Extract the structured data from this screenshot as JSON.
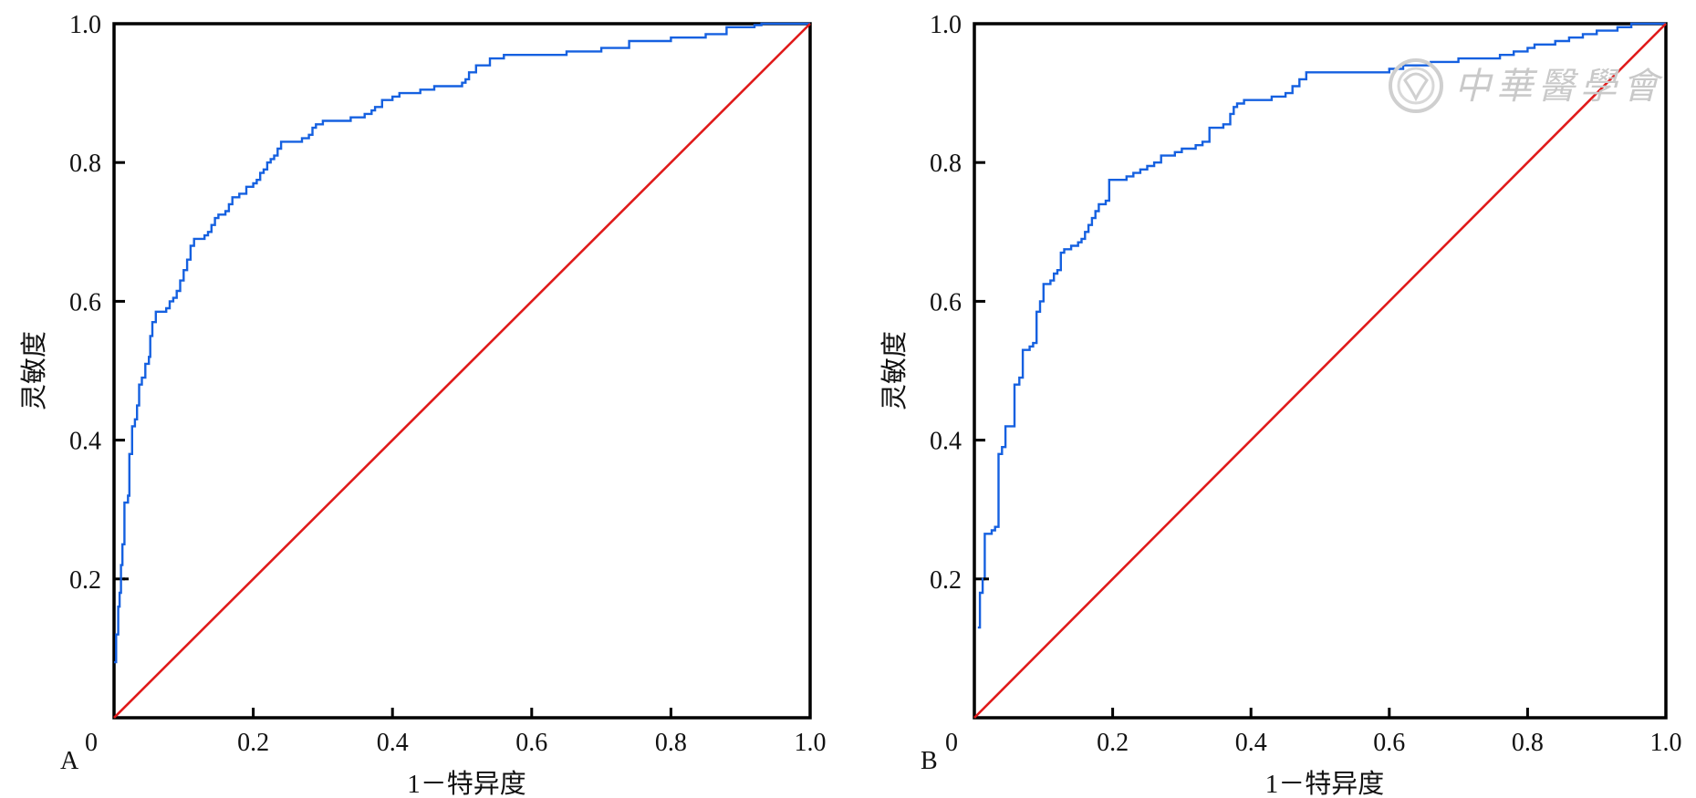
{
  "watermark": {
    "text": "中華醫學會"
  },
  "chart_data": [
    {
      "type": "line",
      "panel_label": "A",
      "xlabel": "1－特异度",
      "ylabel": "灵敏度",
      "xlim": [
        0,
        1.0
      ],
      "ylim": [
        0,
        1.0
      ],
      "xticks": [
        "0",
        "0.2",
        "0.4",
        "0.6",
        "0.8",
        "1.0"
      ],
      "yticks": [
        "0.2",
        "0.4",
        "0.6",
        "0.8",
        "1.0"
      ],
      "grid": false,
      "series": [
        {
          "color": "#1560e0",
          "step": true,
          "points": [
            [
              0,
              0.08
            ],
            [
              0.003,
              0.12
            ],
            [
              0.006,
              0.16
            ],
            [
              0.008,
              0.18
            ],
            [
              0.01,
              0.22
            ],
            [
              0.012,
              0.25
            ],
            [
              0.015,
              0.31
            ],
            [
              0.02,
              0.32
            ],
            [
              0.022,
              0.38
            ],
            [
              0.026,
              0.42
            ],
            [
              0.03,
              0.43
            ],
            [
              0.033,
              0.45
            ],
            [
              0.036,
              0.48
            ],
            [
              0.04,
              0.49
            ],
            [
              0.045,
              0.51
            ],
            [
              0.05,
              0.52
            ],
            [
              0.052,
              0.55
            ],
            [
              0.055,
              0.57
            ],
            [
              0.06,
              0.585
            ],
            [
              0.065,
              0.585
            ],
            [
              0.075,
              0.59
            ],
            [
              0.08,
              0.6
            ],
            [
              0.085,
              0.605
            ],
            [
              0.09,
              0.615
            ],
            [
              0.095,
              0.63
            ],
            [
              0.1,
              0.645
            ],
            [
              0.105,
              0.66
            ],
            [
              0.11,
              0.68
            ],
            [
              0.115,
              0.69
            ],
            [
              0.13,
              0.695
            ],
            [
              0.135,
              0.7
            ],
            [
              0.14,
              0.71
            ],
            [
              0.145,
              0.72
            ],
            [
              0.15,
              0.725
            ],
            [
              0.16,
              0.73
            ],
            [
              0.165,
              0.74
            ],
            [
              0.17,
              0.75
            ],
            [
              0.18,
              0.755
            ],
            [
              0.19,
              0.765
            ],
            [
              0.2,
              0.77
            ],
            [
              0.205,
              0.775
            ],
            [
              0.21,
              0.785
            ],
            [
              0.215,
              0.79
            ],
            [
              0.22,
              0.8
            ],
            [
              0.225,
              0.805
            ],
            [
              0.23,
              0.81
            ],
            [
              0.235,
              0.82
            ],
            [
              0.24,
              0.83
            ],
            [
              0.26,
              0.83
            ],
            [
              0.27,
              0.835
            ],
            [
              0.28,
              0.84
            ],
            [
              0.285,
              0.85
            ],
            [
              0.29,
              0.855
            ],
            [
              0.3,
              0.86
            ],
            [
              0.34,
              0.865
            ],
            [
              0.36,
              0.87
            ],
            [
              0.37,
              0.875
            ],
            [
              0.375,
              0.88
            ],
            [
              0.385,
              0.89
            ],
            [
              0.4,
              0.895
            ],
            [
              0.41,
              0.9
            ],
            [
              0.44,
              0.905
            ],
            [
              0.46,
              0.91
            ],
            [
              0.5,
              0.915
            ],
            [
              0.505,
              0.92
            ],
            [
              0.51,
              0.93
            ],
            [
              0.52,
              0.94
            ],
            [
              0.54,
              0.95
            ],
            [
              0.56,
              0.955
            ],
            [
              0.6,
              0.955
            ],
            [
              0.65,
              0.96
            ],
            [
              0.7,
              0.965
            ],
            [
              0.74,
              0.975
            ],
            [
              0.8,
              0.98
            ],
            [
              0.85,
              0.985
            ],
            [
              0.88,
              0.995
            ],
            [
              0.92,
              0.998
            ],
            [
              0.93,
              1.0
            ],
            [
              1.0,
              1.0
            ]
          ]
        },
        {
          "color": "#e01a1a",
          "step": false,
          "points": [
            [
              0,
              0
            ],
            [
              1,
              1
            ]
          ]
        }
      ]
    },
    {
      "type": "line",
      "panel_label": "B",
      "xlabel": "1－特异度",
      "ylabel": "灵敏度",
      "xlim": [
        0,
        1.0
      ],
      "ylim": [
        0,
        1.0
      ],
      "xticks": [
        "0",
        "0.2",
        "0.4",
        "0.6",
        "0.8",
        "1.0"
      ],
      "yticks": [
        "0.2",
        "0.4",
        "0.6",
        "0.8",
        "1.0"
      ],
      "grid": false,
      "series": [
        {
          "color": "#1560e0",
          "step": true,
          "points": [
            [
              0.005,
              0.13
            ],
            [
              0.008,
              0.18
            ],
            [
              0.012,
              0.2
            ],
            [
              0.015,
              0.265
            ],
            [
              0.025,
              0.27
            ],
            [
              0.03,
              0.275
            ],
            [
              0.035,
              0.38
            ],
            [
              0.04,
              0.39
            ],
            [
              0.045,
              0.42
            ],
            [
              0.055,
              0.42
            ],
            [
              0.058,
              0.48
            ],
            [
              0.065,
              0.49
            ],
            [
              0.07,
              0.53
            ],
            [
              0.08,
              0.535
            ],
            [
              0.085,
              0.54
            ],
            [
              0.09,
              0.585
            ],
            [
              0.095,
              0.6
            ],
            [
              0.1,
              0.625
            ],
            [
              0.11,
              0.63
            ],
            [
              0.115,
              0.64
            ],
            [
              0.12,
              0.645
            ],
            [
              0.125,
              0.67
            ],
            [
              0.13,
              0.675
            ],
            [
              0.14,
              0.68
            ],
            [
              0.15,
              0.685
            ],
            [
              0.155,
              0.69
            ],
            [
              0.16,
              0.7
            ],
            [
              0.165,
              0.71
            ],
            [
              0.17,
              0.72
            ],
            [
              0.175,
              0.73
            ],
            [
              0.18,
              0.74
            ],
            [
              0.19,
              0.745
            ],
            [
              0.195,
              0.775
            ],
            [
              0.22,
              0.78
            ],
            [
              0.23,
              0.785
            ],
            [
              0.24,
              0.79
            ],
            [
              0.25,
              0.795
            ],
            [
              0.26,
              0.8
            ],
            [
              0.27,
              0.81
            ],
            [
              0.29,
              0.815
            ],
            [
              0.3,
              0.82
            ],
            [
              0.32,
              0.825
            ],
            [
              0.33,
              0.83
            ],
            [
              0.34,
              0.85
            ],
            [
              0.36,
              0.855
            ],
            [
              0.37,
              0.87
            ],
            [
              0.375,
              0.88
            ],
            [
              0.38,
              0.885
            ],
            [
              0.39,
              0.89
            ],
            [
              0.43,
              0.895
            ],
            [
              0.45,
              0.9
            ],
            [
              0.46,
              0.91
            ],
            [
              0.47,
              0.92
            ],
            [
              0.48,
              0.93
            ],
            [
              0.52,
              0.93
            ],
            [
              0.6,
              0.935
            ],
            [
              0.62,
              0.94
            ],
            [
              0.66,
              0.945
            ],
            [
              0.7,
              0.95
            ],
            [
              0.76,
              0.955
            ],
            [
              0.78,
              0.96
            ],
            [
              0.8,
              0.965
            ],
            [
              0.81,
              0.97
            ],
            [
              0.84,
              0.975
            ],
            [
              0.86,
              0.98
            ],
            [
              0.88,
              0.985
            ],
            [
              0.9,
              0.99
            ],
            [
              0.93,
              0.995
            ],
            [
              0.95,
              1.0
            ],
            [
              1.0,
              1.0
            ]
          ]
        },
        {
          "color": "#e01a1a",
          "step": false,
          "points": [
            [
              0,
              0
            ],
            [
              1,
              1
            ]
          ]
        }
      ]
    }
  ]
}
